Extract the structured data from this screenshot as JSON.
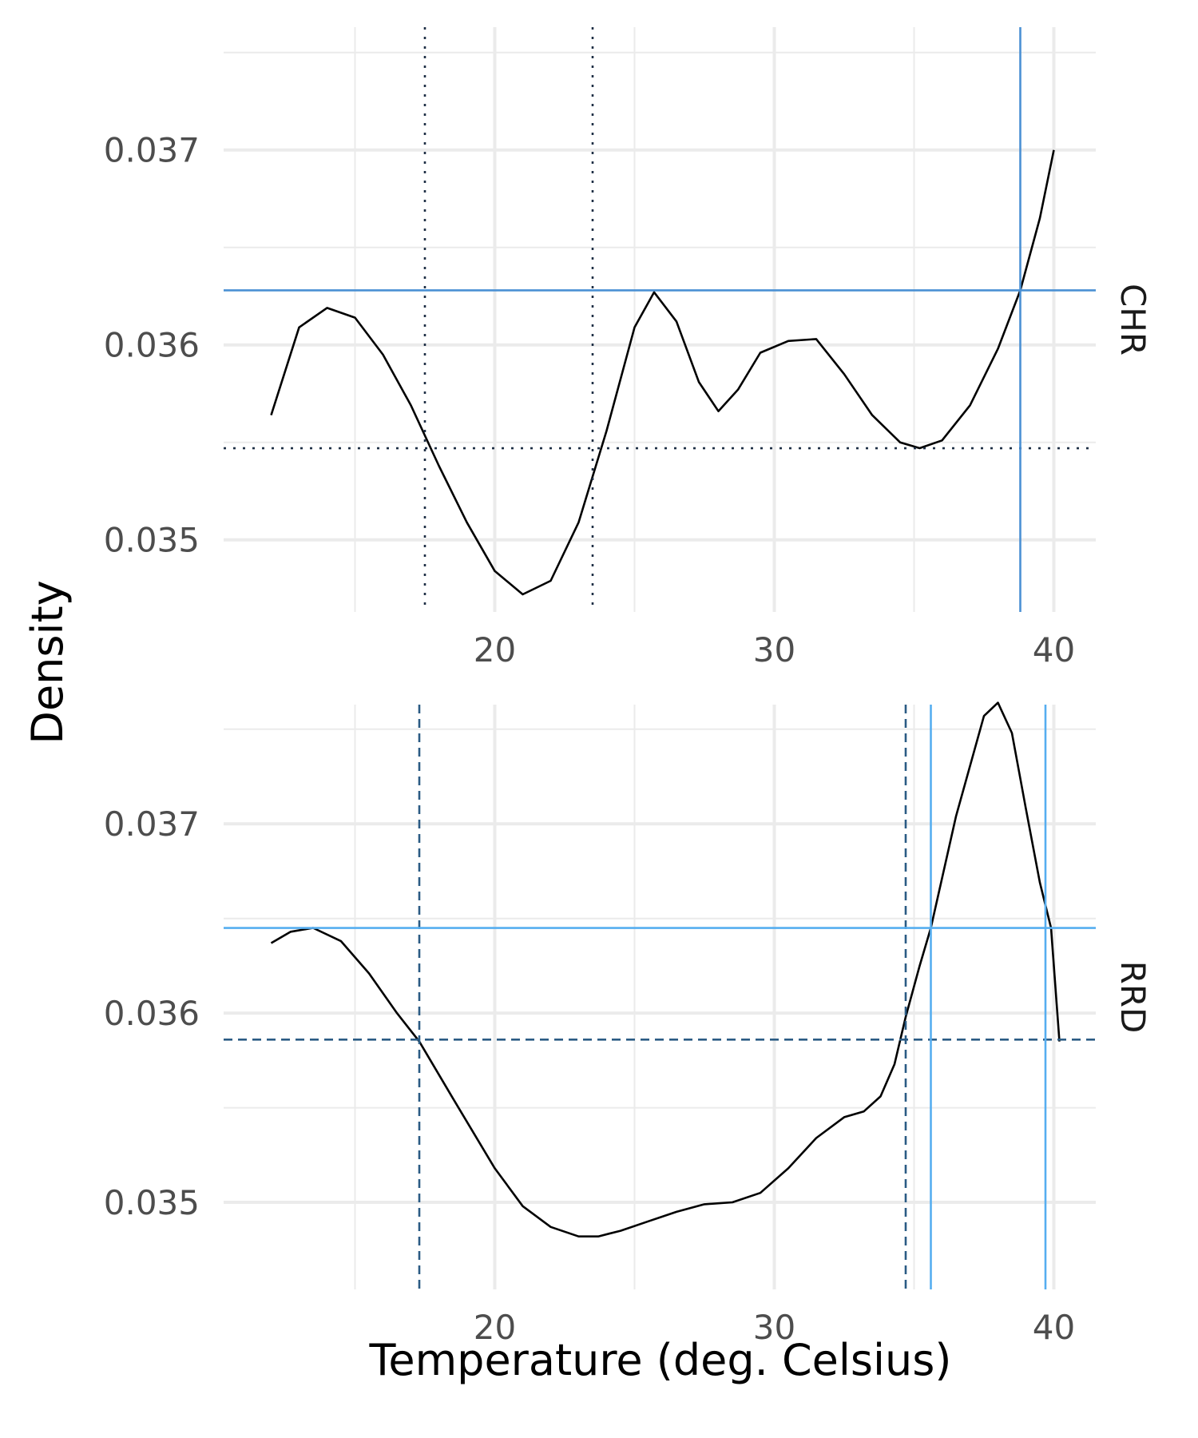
{
  "chart_data": {
    "type": "line",
    "xlabel": "Temperature (deg. Celsius)",
    "ylabel": "Density",
    "xlim": [
      10.3,
      41.5
    ],
    "x_ticks": [
      20,
      30,
      40
    ],
    "x_tick_labels": [
      "20",
      "30",
      "40"
    ],
    "grid": true,
    "panels": [
      {
        "label": "CHR",
        "ylim": [
          0.03463,
          0.03763
        ],
        "y_ticks": [
          0.035,
          0.036,
          0.037
        ],
        "y_tick_labels": [
          "0.035",
          "0.036",
          "0.037"
        ],
        "series": [
          {
            "x": [
              12.0,
              13.0,
              14.0,
              15.0,
              16.0,
              17.0,
              18.0,
              19.0,
              20.0,
              21.0,
              22.0,
              23.0,
              24.0,
              25.0,
              25.7,
              26.5,
              27.3,
              28.0,
              28.7,
              29.5,
              30.5,
              31.5,
              32.5,
              33.5,
              34.5,
              35.2,
              36.0,
              37.0,
              38.0,
              38.8,
              39.5,
              40.0
            ],
            "y": [
              0.03564,
              0.03609,
              0.03619,
              0.03614,
              0.03595,
              0.03569,
              0.03538,
              0.03509,
              0.03484,
              0.03472,
              0.03479,
              0.03509,
              0.03556,
              0.03609,
              0.03627,
              0.03612,
              0.03581,
              0.03566,
              0.03577,
              0.03596,
              0.03602,
              0.03603,
              0.03585,
              0.03564,
              0.0355,
              0.03547,
              0.03551,
              0.03569,
              0.03598,
              0.03628,
              0.03665,
              0.037
            ]
          }
        ],
        "reference_lines": [
          {
            "orientation": "horizontal",
            "value": 0.03547,
            "style": "dotted",
            "color": "#1e2f45"
          },
          {
            "orientation": "vertical",
            "value": 17.5,
            "style": "dotted",
            "color": "#1e2f45"
          },
          {
            "orientation": "vertical",
            "value": 23.5,
            "style": "dotted",
            "color": "#1e2f45"
          },
          {
            "orientation": "horizontal",
            "value": 0.03628,
            "style": "solid",
            "color": "#4a90d4"
          },
          {
            "orientation": "vertical",
            "value": 38.8,
            "style": "solid",
            "color": "#4a90d4"
          }
        ]
      },
      {
        "label": "RRD",
        "ylim": [
          0.03454,
          0.03763
        ],
        "y_ticks": [
          0.035,
          0.036,
          0.037
        ],
        "y_tick_labels": [
          "0.035",
          "0.036",
          "0.037"
        ],
        "series": [
          {
            "x": [
              12.0,
              12.7,
              13.5,
              14.5,
              15.5,
              16.5,
              17.3,
              18.5,
              20.0,
              21.0,
              22.0,
              23.0,
              23.7,
              24.5,
              25.5,
              26.5,
              27.5,
              28.5,
              29.5,
              30.5,
              31.5,
              32.5,
              33.2,
              33.8,
              34.3,
              34.7,
              35.2,
              35.6,
              36.5,
              37.5,
              38.0,
              38.5,
              39.0,
              39.5,
              39.9,
              40.2
            ],
            "y": [
              0.03637,
              0.03643,
              0.03645,
              0.03638,
              0.03621,
              0.036,
              0.03585,
              0.03555,
              0.03518,
              0.03498,
              0.03487,
              0.03482,
              0.03482,
              0.03485,
              0.0349,
              0.03495,
              0.03499,
              0.035,
              0.03505,
              0.03518,
              0.03534,
              0.03545,
              0.03548,
              0.03556,
              0.03573,
              0.03598,
              0.03625,
              0.03645,
              0.03704,
              0.03757,
              0.03764,
              0.03748,
              0.03708,
              0.03669,
              0.03645,
              0.03585
            ]
          }
        ],
        "reference_lines": [
          {
            "orientation": "horizontal",
            "value": 0.03586,
            "style": "dashed",
            "color": "#2b5b84"
          },
          {
            "orientation": "vertical",
            "value": 17.3,
            "style": "dashed",
            "color": "#2b5b84"
          },
          {
            "orientation": "vertical",
            "value": 34.7,
            "style": "dashed",
            "color": "#2b5b84"
          },
          {
            "orientation": "horizontal",
            "value": 0.03645,
            "style": "solid",
            "color": "#56aef0"
          },
          {
            "orientation": "vertical",
            "value": 35.6,
            "style": "solid",
            "color": "#56aef0"
          },
          {
            "orientation": "vertical",
            "value": 39.7,
            "style": "solid",
            "color": "#56aef0"
          }
        ]
      }
    ]
  }
}
